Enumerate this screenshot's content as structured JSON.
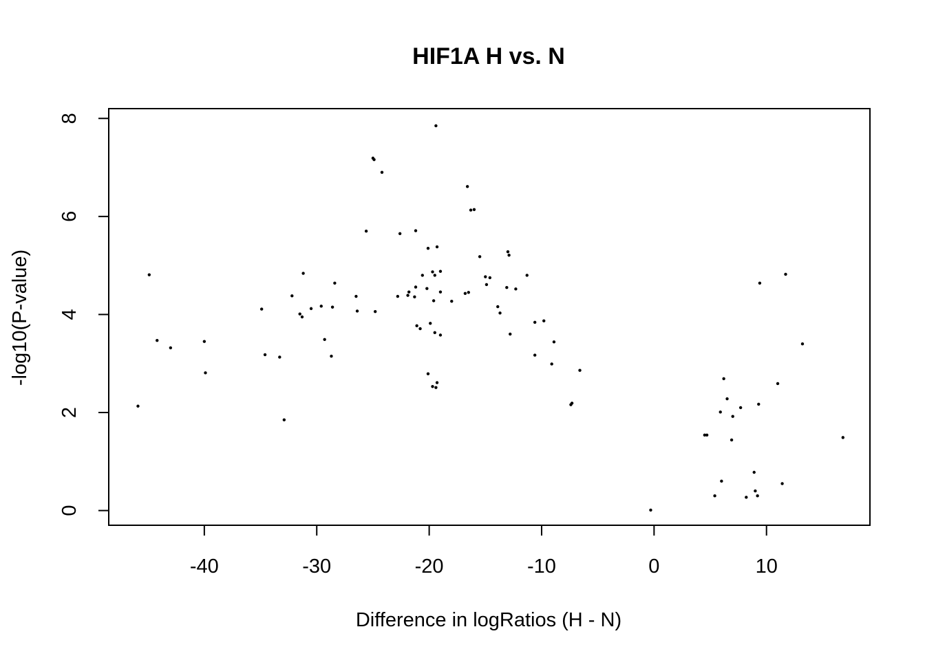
{
  "chart_data": {
    "type": "scatter",
    "title": "HIF1A H vs. N",
    "xlabel": "Difference in logRatios (H - N)",
    "ylabel": "-log10(P-value)",
    "xlim": [
      -48.5,
      19.2
    ],
    "ylim": [
      -0.3,
      8.2
    ],
    "xticks": [
      -40,
      -30,
      -20,
      -10,
      0,
      10
    ],
    "yticks": [
      0,
      2,
      4,
      6,
      8
    ],
    "xtick_labels": [
      "-40",
      "-30",
      "-20",
      "-10",
      "0",
      "10"
    ],
    "ytick_labels": [
      "0",
      "2",
      "4",
      "6",
      "8"
    ],
    "grid": false,
    "points": [
      [
        -45.9,
        2.13
      ],
      [
        -44.9,
        4.81
      ],
      [
        -44.2,
        3.47
      ],
      [
        -43.0,
        3.32
      ],
      [
        -40.0,
        3.45
      ],
      [
        -39.9,
        2.81
      ],
      [
        -34.9,
        4.11
      ],
      [
        -34.6,
        3.18
      ],
      [
        -33.3,
        3.13
      ],
      [
        -32.9,
        1.85
      ],
      [
        -32.2,
        4.38
      ],
      [
        -31.5,
        4.01
      ],
      [
        -31.3,
        3.95
      ],
      [
        -31.2,
        4.84
      ],
      [
        -30.5,
        4.12
      ],
      [
        -29.6,
        4.17
      ],
      [
        -29.3,
        3.49
      ],
      [
        -28.7,
        3.15
      ],
      [
        -28.6,
        4.15
      ],
      [
        -28.4,
        4.64
      ],
      [
        -26.5,
        4.37
      ],
      [
        -26.4,
        4.07
      ],
      [
        -25.6,
        5.7
      ],
      [
        -25.0,
        7.19
      ],
      [
        -24.9,
        7.16
      ],
      [
        -24.8,
        4.06
      ],
      [
        -24.2,
        6.9
      ],
      [
        -22.8,
        4.37
      ],
      [
        -22.6,
        5.65
      ],
      [
        -21.9,
        4.39
      ],
      [
        -21.8,
        4.46
      ],
      [
        -21.3,
        4.36
      ],
      [
        -21.2,
        5.71
      ],
      [
        -21.2,
        4.56
      ],
      [
        -21.1,
        3.77
      ],
      [
        -20.8,
        3.71
      ],
      [
        -20.6,
        4.8
      ],
      [
        -20.2,
        4.53
      ],
      [
        -20.1,
        5.35
      ],
      [
        -20.1,
        2.79
      ],
      [
        -19.9,
        3.82
      ],
      [
        -19.7,
        4.87
      ],
      [
        -19.7,
        2.53
      ],
      [
        -19.6,
        4.28
      ],
      [
        -19.5,
        4.8
      ],
      [
        -19.5,
        3.63
      ],
      [
        -19.4,
        2.51
      ],
      [
        -19.4,
        7.85
      ],
      [
        -19.3,
        5.38
      ],
      [
        -19.3,
        2.61
      ],
      [
        -19.0,
        4.88
      ],
      [
        -19.0,
        4.46
      ],
      [
        -19.0,
        3.58
      ],
      [
        -18.0,
        4.27
      ],
      [
        -16.8,
        4.43
      ],
      [
        -16.6,
        6.61
      ],
      [
        -16.5,
        4.45
      ],
      [
        -16.3,
        6.13
      ],
      [
        -16.0,
        6.14
      ],
      [
        -15.5,
        5.18
      ],
      [
        -15.0,
        4.77
      ],
      [
        -14.9,
        4.61
      ],
      [
        -14.6,
        4.75
      ],
      [
        -13.9,
        4.16
      ],
      [
        -13.7,
        4.03
      ],
      [
        -13.1,
        4.55
      ],
      [
        -13.0,
        5.28
      ],
      [
        -12.9,
        5.21
      ],
      [
        -12.8,
        3.6
      ],
      [
        -12.3,
        4.52
      ],
      [
        -11.3,
        4.8
      ],
      [
        -10.6,
        3.84
      ],
      [
        -10.6,
        3.17
      ],
      [
        -9.8,
        3.87
      ],
      [
        -9.1,
        2.99
      ],
      [
        -8.9,
        3.44
      ],
      [
        -7.4,
        2.16
      ],
      [
        -7.3,
        2.19
      ],
      [
        -6.6,
        2.86
      ],
      [
        -0.3,
        0.01
      ],
      [
        4.5,
        1.54
      ],
      [
        4.7,
        1.54
      ],
      [
        5.4,
        0.3
      ],
      [
        5.9,
        2.01
      ],
      [
        6.0,
        0.6
      ],
      [
        6.2,
        2.69
      ],
      [
        6.5,
        2.28
      ],
      [
        6.9,
        1.44
      ],
      [
        7.0,
        1.92
      ],
      [
        7.7,
        2.1
      ],
      [
        8.2,
        0.27
      ],
      [
        8.9,
        0.78
      ],
      [
        9.0,
        0.4
      ],
      [
        9.2,
        0.3
      ],
      [
        9.3,
        2.17
      ],
      [
        9.4,
        4.64
      ],
      [
        11.0,
        2.59
      ],
      [
        11.4,
        0.55
      ],
      [
        11.7,
        4.82
      ],
      [
        13.2,
        3.4
      ],
      [
        16.8,
        1.49
      ]
    ]
  }
}
